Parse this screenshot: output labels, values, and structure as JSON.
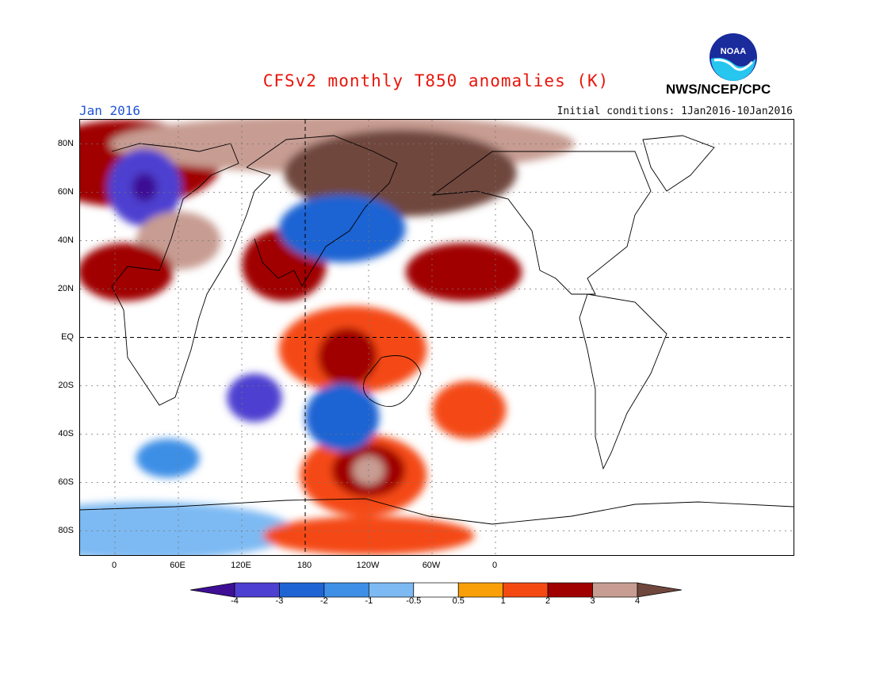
{
  "header": {
    "title": "CFSv2 monthly T850 anomalies (K)",
    "month": "Jan 2016",
    "initial_conditions": "Initial conditions: 1Jan2016-10Jan2016",
    "agency": "NWS/NCEP/CPC",
    "logo_text": "NOAA"
  },
  "colors": {
    "title": "#e8150b",
    "month": "#1f55d6"
  },
  "map": {
    "lat_labels": [
      {
        "text": "80N",
        "lat": 80
      },
      {
        "text": "60N",
        "lat": 60
      },
      {
        "text": "40N",
        "lat": 40
      },
      {
        "text": "20N",
        "lat": 20
      },
      {
        "text": "EQ",
        "lat": 0
      },
      {
        "text": "20S",
        "lat": -20
      },
      {
        "text": "40S",
        "lat": -40
      },
      {
        "text": "60S",
        "lat": -60
      },
      {
        "text": "80S",
        "lat": -80
      }
    ],
    "lon_labels": [
      {
        "text": "0",
        "lon": 0
      },
      {
        "text": "60E",
        "lon": 60
      },
      {
        "text": "120E",
        "lon": 120
      },
      {
        "text": "180",
        "lon": 180
      },
      {
        "text": "120W",
        "lon": 240
      },
      {
        "text": "60W",
        "lon": 300
      },
      {
        "text": "0",
        "lon": 360
      }
    ],
    "lon_range": [
      -33,
      642
    ],
    "lat_range": [
      -90,
      90
    ]
  },
  "colorbar": {
    "labels": [
      "-4",
      "-3",
      "-2",
      "-1",
      "-0.5",
      "0.5",
      "1",
      "2",
      "3",
      "4"
    ],
    "colors": [
      "#3e0f95",
      "#4d3fd0",
      "#1f64d3",
      "#3e8fe6",
      "#7dbaf3",
      "#ffffff",
      "#f99f07",
      "#f44a12",
      "#a00000",
      "#c79c92",
      "#70473c"
    ]
  },
  "anomaly_features": [
    {
      "lon": 10,
      "lat": 72,
      "w": 90,
      "h": 18,
      "color": "#a00000"
    },
    {
      "lon": 215,
      "lat": 80,
      "w": 220,
      "h": 12,
      "color": "#c79c92"
    },
    {
      "lon": 270,
      "lat": 68,
      "w": 110,
      "h": 18,
      "color": "#70473c"
    },
    {
      "lon": 28,
      "lat": 62,
      "w": 35,
      "h": 16,
      "color": "#4d3fd0"
    },
    {
      "lon": 28,
      "lat": 62,
      "w": 12,
      "h": 6,
      "color": "#3e0f95"
    },
    {
      "lon": 60,
      "lat": 40,
      "w": 40,
      "h": 12,
      "color": "#c79c92"
    },
    {
      "lon": 160,
      "lat": 30,
      "w": 40,
      "h": 15,
      "color": "#a00000"
    },
    {
      "lon": 10,
      "lat": 27,
      "w": 45,
      "h": 12,
      "color": "#a00000"
    },
    {
      "lon": 215,
      "lat": 45,
      "w": 60,
      "h": 14,
      "color": "#1f64d3"
    },
    {
      "lon": 225,
      "lat": -5,
      "w": 70,
      "h": 18,
      "color": "#f44a12"
    },
    {
      "lon": 220,
      "lat": -8,
      "w": 28,
      "h": 12,
      "color": "#a00000"
    },
    {
      "lon": 235,
      "lat": -57,
      "w": 60,
      "h": 17,
      "color": "#f44a12"
    },
    {
      "lon": 240,
      "lat": -55,
      "w": 35,
      "h": 11,
      "color": "#a00000"
    },
    {
      "lon": 240,
      "lat": -55,
      "w": 15,
      "h": 6,
      "color": "#c79c92"
    },
    {
      "lon": 215,
      "lat": -33,
      "w": 35,
      "h": 14,
      "color": "#1f64d3"
    },
    {
      "lon": 132,
      "lat": -25,
      "w": 26,
      "h": 10,
      "color": "#4d3fd0"
    },
    {
      "lon": 330,
      "lat": 27,
      "w": 55,
      "h": 12,
      "color": "#a00000"
    },
    {
      "lon": 335,
      "lat": -30,
      "w": 35,
      "h": 12,
      "color": "#f44a12"
    },
    {
      "lon": 50,
      "lat": -50,
      "w": 30,
      "h": 8,
      "color": "#3e8fe6"
    },
    {
      "lon": 30,
      "lat": -80,
      "w": 140,
      "h": 12,
      "color": "#7dbaf3"
    },
    {
      "lon": 240,
      "lat": -82,
      "w": 100,
      "h": 8,
      "color": "#f44a12"
    }
  ]
}
